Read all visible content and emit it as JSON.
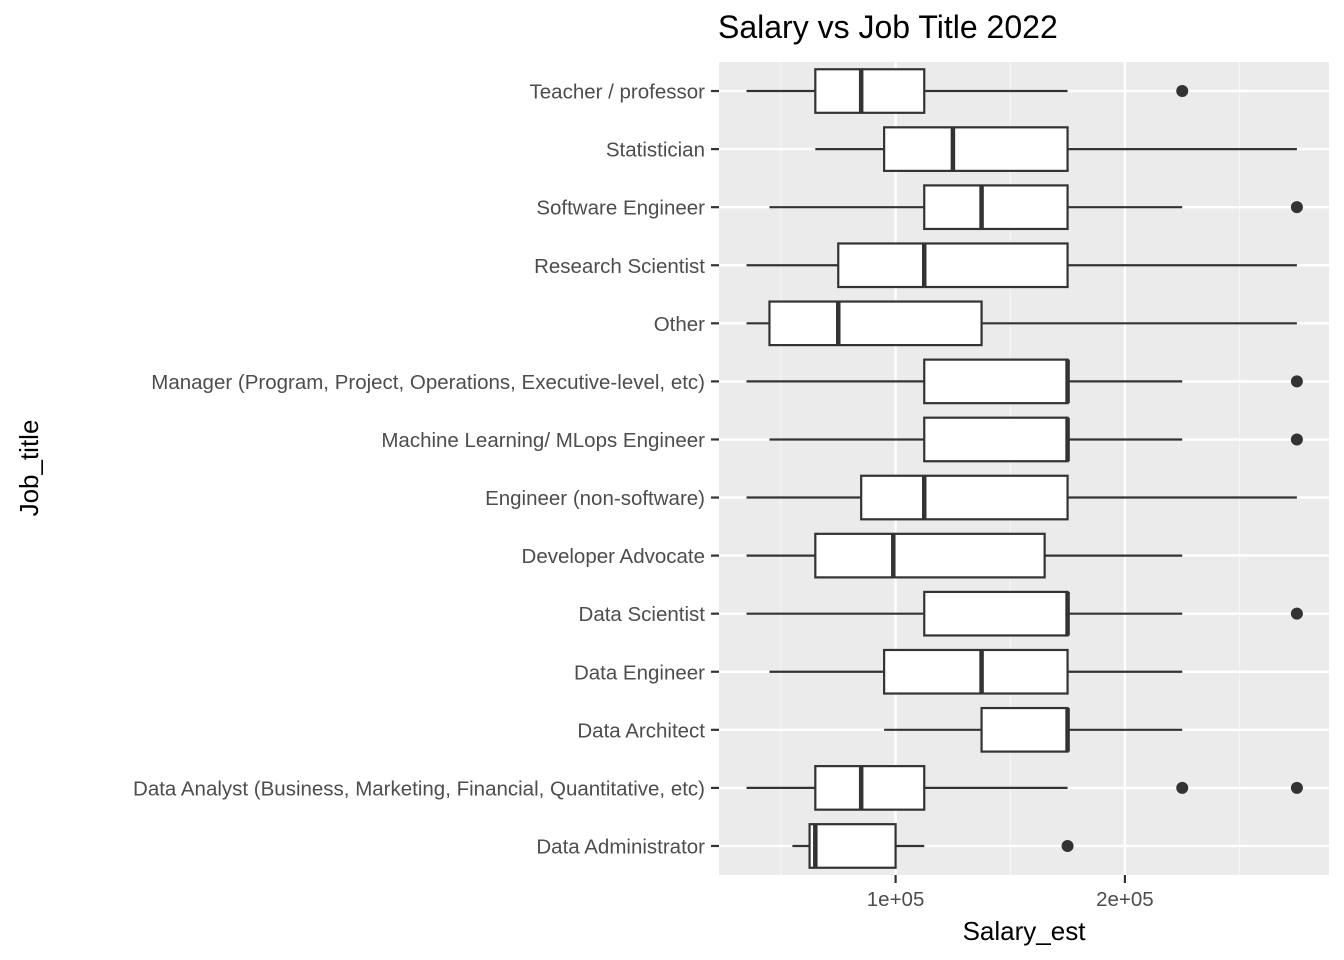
{
  "chart_data": {
    "type": "boxplot",
    "orientation": "horizontal",
    "title": "Salary vs Job Title 2022",
    "xlabel": "Salary_est",
    "ylabel": "Job_title",
    "xlim": [
      23000,
      289000
    ],
    "x_ticks": [
      {
        "value": 100000,
        "label": "1e+05"
      },
      {
        "value": 200000,
        "label": "2e+05"
      }
    ],
    "x_minor_ticks": [
      50000,
      150000,
      250000
    ],
    "grid": true,
    "categories": [
      "Data Administrator",
      "Data Analyst (Business, Marketing, Financial, Quantitative, etc)",
      "Data Architect",
      "Data Engineer",
      "Data Scientist",
      "Developer Advocate",
      "Engineer (non-software)",
      "Machine Learning/ MLops Engineer",
      "Manager (Program, Project, Operations, Executive-level, etc)",
      "Other",
      "Research Scientist",
      "Software Engineer",
      "Statistician",
      "Teacher / professor"
    ],
    "boxes": [
      {
        "category": "Data Administrator",
        "whisker_low": 55000,
        "q1": 62500,
        "median": 65000,
        "q3": 100000,
        "whisker_high": 112500,
        "outliers": [
          175000
        ]
      },
      {
        "category": "Data Analyst (Business, Marketing, Financial, Quantitative, etc)",
        "whisker_low": 35000,
        "q1": 65000,
        "median": 85000,
        "q3": 112500,
        "whisker_high": 175000,
        "outliers": [
          225000,
          275000
        ]
      },
      {
        "category": "Data Architect",
        "whisker_low": 95000,
        "q1": 137500,
        "median": 175000,
        "q3": 175000,
        "whisker_high": 225000,
        "outliers": []
      },
      {
        "category": "Data Engineer",
        "whisker_low": 45000,
        "q1": 95000,
        "median": 137500,
        "q3": 175000,
        "whisker_high": 225000,
        "outliers": []
      },
      {
        "category": "Data Scientist",
        "whisker_low": 35000,
        "q1": 112500,
        "median": 175000,
        "q3": 175000,
        "whisker_high": 225000,
        "outliers": [
          275000
        ]
      },
      {
        "category": "Developer Advocate",
        "whisker_low": 35000,
        "q1": 65000,
        "median": 99000,
        "q3": 165000,
        "whisker_high": 225000,
        "outliers": []
      },
      {
        "category": "Engineer (non-software)",
        "whisker_low": 35000,
        "q1": 85000,
        "median": 112500,
        "q3": 175000,
        "whisker_high": 275000,
        "outliers": []
      },
      {
        "category": "Machine Learning/ MLops Engineer",
        "whisker_low": 45000,
        "q1": 112500,
        "median": 175000,
        "q3": 175000,
        "whisker_high": 225000,
        "outliers": [
          275000
        ]
      },
      {
        "category": "Manager (Program, Project, Operations, Executive-level, etc)",
        "whisker_low": 35000,
        "q1": 112500,
        "median": 175000,
        "q3": 175000,
        "whisker_high": 225000,
        "outliers": [
          275000
        ]
      },
      {
        "category": "Other",
        "whisker_low": 35000,
        "q1": 45000,
        "median": 75000,
        "q3": 137500,
        "whisker_high": 275000,
        "outliers": []
      },
      {
        "category": "Research Scientist",
        "whisker_low": 35000,
        "q1": 75000,
        "median": 112500,
        "q3": 175000,
        "whisker_high": 275000,
        "outliers": []
      },
      {
        "category": "Software Engineer",
        "whisker_low": 45000,
        "q1": 112500,
        "median": 137500,
        "q3": 175000,
        "whisker_high": 225000,
        "outliers": [
          275000
        ]
      },
      {
        "category": "Statistician",
        "whisker_low": 65000,
        "q1": 95000,
        "median": 125000,
        "q3": 175000,
        "whisker_high": 275000,
        "outliers": []
      },
      {
        "category": "Teacher / professor",
        "whisker_low": 35000,
        "q1": 65000,
        "median": 85000,
        "q3": 112500,
        "whisker_high": 175000,
        "outliers": [
          225000
        ]
      }
    ],
    "colors": {
      "panel_background": "#ebebeb",
      "grid_major": "#ffffff",
      "grid_minor": "#f5f5f5",
      "box_fill": "#ffffff",
      "box_stroke": "#333333",
      "tick_text": "#4d4d4d",
      "text": "#000000"
    }
  }
}
